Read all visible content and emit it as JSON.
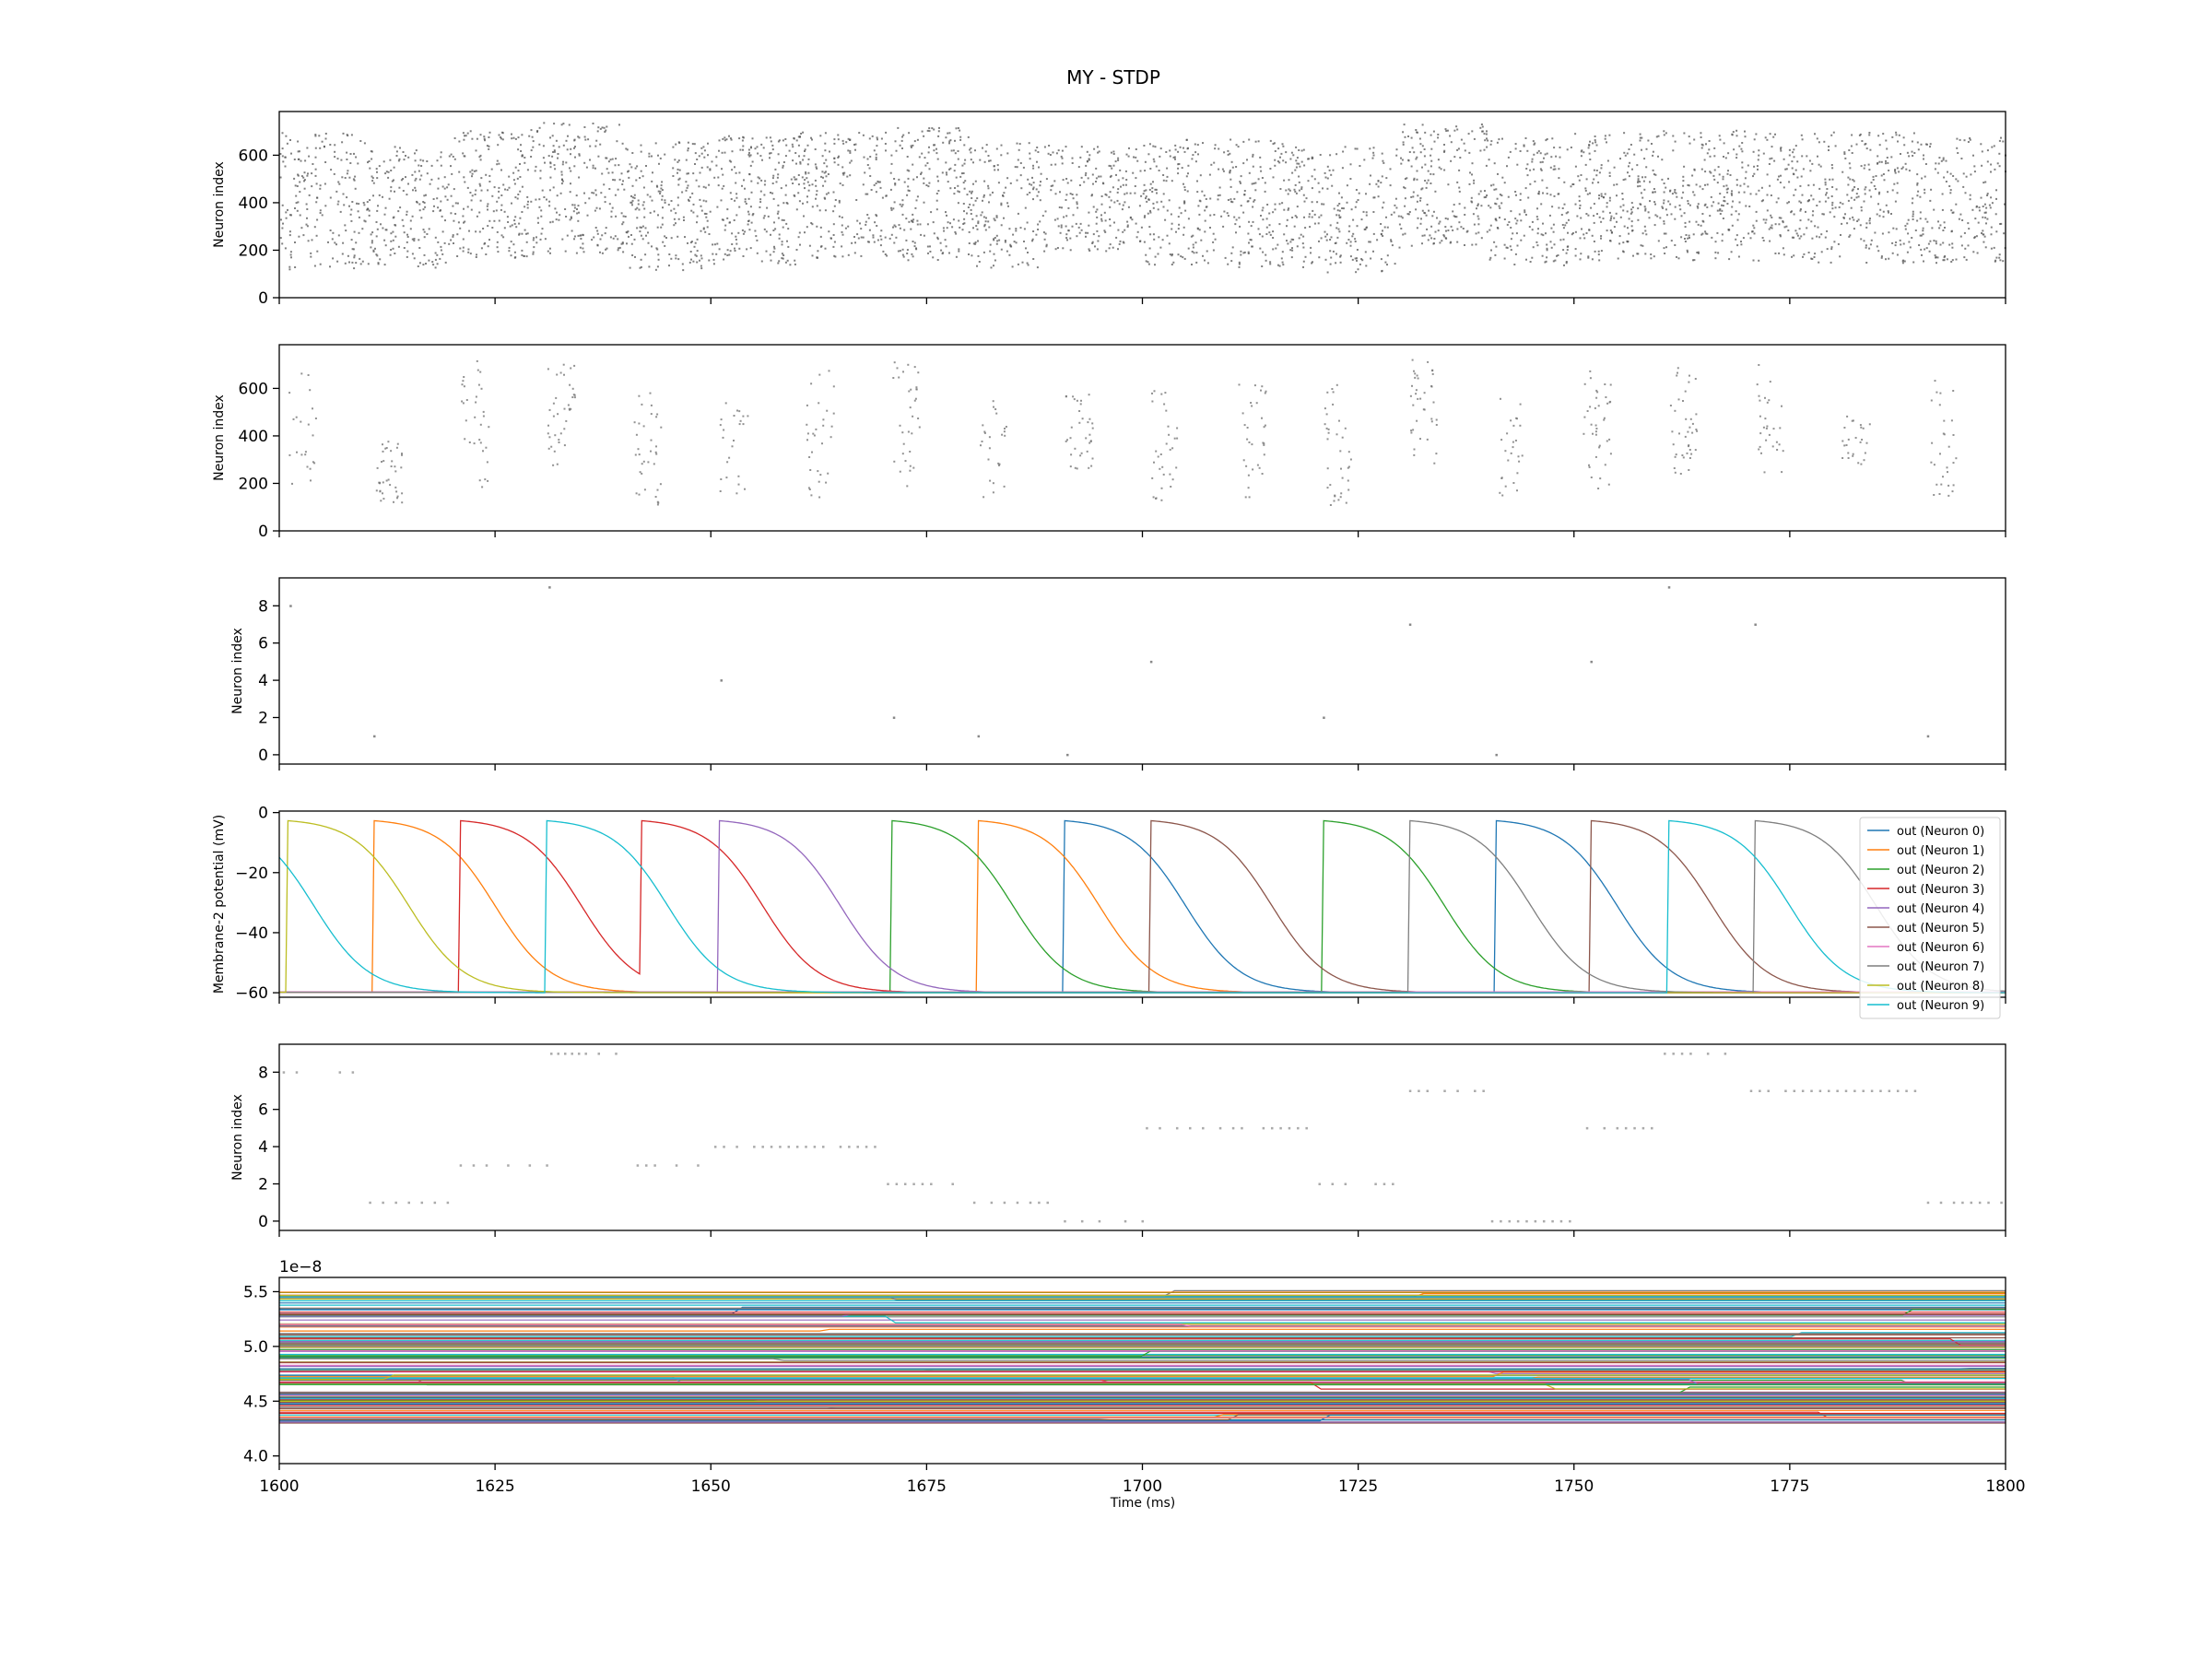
{
  "figure": {
    "title": "MY - STDP",
    "xlabel": "Time (ms)",
    "xlim": [
      1600,
      1800
    ],
    "xticks": [
      1600,
      1625,
      1650,
      1675,
      1700,
      1725,
      1750,
      1775,
      1800
    ],
    "background": "#ffffff",
    "axis_color": "#000000"
  },
  "chart_data": [
    {
      "type": "scatter",
      "title": "",
      "ylabel": "Neuron index",
      "ylim": [
        0,
        784
      ],
      "yticks": [
        0,
        200,
        400,
        600
      ],
      "marker_color": "#555555",
      "description_of_pattern": "dense input raster",
      "segments": [
        {
          "t0": 1600,
          "t1": 1610,
          "lo": 120,
          "hi": 700
        },
        {
          "t0": 1610,
          "t1": 1620,
          "lo": 130,
          "hi": 640
        },
        {
          "t0": 1620,
          "t1": 1630,
          "lo": 170,
          "hi": 720
        },
        {
          "t0": 1630,
          "t1": 1640,
          "lo": 190,
          "hi": 740
        },
        {
          "t0": 1640,
          "t1": 1650,
          "lo": 120,
          "hi": 660
        },
        {
          "t0": 1650,
          "t1": 1660,
          "lo": 140,
          "hi": 690
        },
        {
          "t0": 1660,
          "t1": 1670,
          "lo": 170,
          "hi": 700
        },
        {
          "t0": 1670,
          "t1": 1680,
          "lo": 160,
          "hi": 720
        },
        {
          "t0": 1680,
          "t1": 1690,
          "lo": 130,
          "hi": 660
        },
        {
          "t0": 1690,
          "t1": 1700,
          "lo": 200,
          "hi": 640
        },
        {
          "t0": 1700,
          "t1": 1710,
          "lo": 140,
          "hi": 670
        },
        {
          "t0": 1710,
          "t1": 1720,
          "lo": 130,
          "hi": 670
        },
        {
          "t0": 1720,
          "t1": 1730,
          "lo": 110,
          "hi": 640
        },
        {
          "t0": 1730,
          "t1": 1740,
          "lo": 220,
          "hi": 740
        },
        {
          "t0": 1740,
          "t1": 1750,
          "lo": 140,
          "hi": 680
        },
        {
          "t0": 1750,
          "t1": 1760,
          "lo": 160,
          "hi": 700
        },
        {
          "t0": 1760,
          "t1": 1770,
          "lo": 160,
          "hi": 710
        },
        {
          "t0": 1770,
          "t1": 1780,
          "lo": 150,
          "hi": 700
        },
        {
          "t0": 1780,
          "t1": 1790,
          "lo": 150,
          "hi": 700
        },
        {
          "t0": 1790,
          "t1": 1800,
          "lo": 150,
          "hi": 680
        }
      ]
    },
    {
      "type": "scatter",
      "title": "",
      "ylabel": "Neuron index",
      "ylim": [
        0,
        784
      ],
      "yticks": [
        0,
        200,
        400,
        600
      ],
      "marker_color": "#777777",
      "bursts": [
        {
          "t": 1601,
          "lo": 200,
          "hi": 710
        },
        {
          "t": 1611,
          "lo": 120,
          "hi": 380
        },
        {
          "t": 1621,
          "lo": 180,
          "hi": 720
        },
        {
          "t": 1631,
          "lo": 260,
          "hi": 740
        },
        {
          "t": 1641,
          "lo": 110,
          "hi": 600
        },
        {
          "t": 1651,
          "lo": 160,
          "hi": 560
        },
        {
          "t": 1661,
          "lo": 140,
          "hi": 690
        },
        {
          "t": 1671,
          "lo": 180,
          "hi": 720
        },
        {
          "t": 1681,
          "lo": 140,
          "hi": 580
        },
        {
          "t": 1691,
          "lo": 240,
          "hi": 600
        },
        {
          "t": 1701,
          "lo": 130,
          "hi": 600
        },
        {
          "t": 1711,
          "lo": 120,
          "hi": 670
        },
        {
          "t": 1721,
          "lo": 100,
          "hi": 630
        },
        {
          "t": 1731,
          "lo": 230,
          "hi": 750
        },
        {
          "t": 1741,
          "lo": 120,
          "hi": 560
        },
        {
          "t": 1751,
          "lo": 160,
          "hi": 690
        },
        {
          "t": 1761,
          "lo": 240,
          "hi": 710
        },
        {
          "t": 1771,
          "lo": 180,
          "hi": 710
        },
        {
          "t": 1781,
          "lo": 280,
          "hi": 490
        },
        {
          "t": 1791,
          "lo": 150,
          "hi": 690
        }
      ]
    },
    {
      "type": "scatter",
      "title": "",
      "ylabel": "Neuron index",
      "ylim": [
        -0.5,
        9.5
      ],
      "yticks": [
        0,
        2,
        4,
        6,
        8
      ],
      "marker_color": "#888888",
      "points": [
        {
          "x": 1601.3,
          "y": 8
        },
        {
          "x": 1611.0,
          "y": 1
        },
        {
          "x": 1631.3,
          "y": 9
        },
        {
          "x": 1651.2,
          "y": 4
        },
        {
          "x": 1671.2,
          "y": 2
        },
        {
          "x": 1681.0,
          "y": 1
        },
        {
          "x": 1691.3,
          "y": 0
        },
        {
          "x": 1701.0,
          "y": 5
        },
        {
          "x": 1721.0,
          "y": 2
        },
        {
          "x": 1731.0,
          "y": 7
        },
        {
          "x": 1741.0,
          "y": 0
        },
        {
          "x": 1752.0,
          "y": 5
        },
        {
          "x": 1761.0,
          "y": 9
        },
        {
          "x": 1771.0,
          "y": 7
        },
        {
          "x": 1791.0,
          "y": 1
        }
      ]
    },
    {
      "type": "line",
      "title": "",
      "ylabel": "Membrane-2 potential (mV)",
      "ylim": [
        -61.5,
        0.5
      ],
      "yticks": [
        -60,
        -40,
        -20,
        0
      ],
      "legend_position": "right",
      "v_reset": -60,
      "v_rest": -2,
      "decay_center_ms": 14,
      "decay_width_ms": 3.2,
      "series": [
        {
          "name": "out (Neuron 0)",
          "color": "#1f77b4",
          "jumps": [
            1691,
            1741
          ]
        },
        {
          "name": "out (Neuron 1)",
          "color": "#ff7f0e",
          "jumps": [
            1611,
            1681
          ]
        },
        {
          "name": "out (Neuron 2)",
          "color": "#2ca02c",
          "jumps": [
            1671,
            1721
          ]
        },
        {
          "name": "out (Neuron 3)",
          "color": "#d62728",
          "jumps": [
            1621,
            1642
          ]
        },
        {
          "name": "out (Neuron 4)",
          "color": "#9467bd",
          "jumps": [
            1651
          ]
        },
        {
          "name": "out (Neuron 5)",
          "color": "#8c564b",
          "jumps": [
            1701,
            1752
          ]
        },
        {
          "name": "out (Neuron 6)",
          "color": "#e377c2",
          "jumps": []
        },
        {
          "name": "out (Neuron 7)",
          "color": "#7f7f7f",
          "jumps": [
            1731,
            1771
          ]
        },
        {
          "name": "out (Neuron 8)",
          "color": "#bcbd22",
          "jumps": [
            1601
          ]
        },
        {
          "name": "out (Neuron 9)",
          "color": "#17becf",
          "jumps": [
            1631,
            1761
          ]
        }
      ]
    },
    {
      "type": "scatter",
      "title": "",
      "ylabel": "Neuron index",
      "ylim": [
        -0.5,
        9.5
      ],
      "yticks": [
        0,
        2,
        4,
        6,
        8
      ],
      "marker_color": "#aaaaaa",
      "runs": [
        {
          "y": 8,
          "times": [
            1600.5,
            1602,
            1607,
            1608.5
          ]
        },
        {
          "y": 1,
          "times": [
            1610.5,
            1612,
            1613.5,
            1615,
            1616.5,
            1618,
            1619.5
          ]
        },
        {
          "y": 3,
          "times": [
            1621,
            1622.5,
            1624,
            1626.5,
            1629,
            1631
          ]
        },
        {
          "y": 9,
          "times": [
            1631.5,
            1632.3,
            1633.1,
            1633.9,
            1634.7,
            1635.5,
            1637,
            1639
          ]
        },
        {
          "y": 3,
          "times": [
            1641.5,
            1642.5,
            1643.5,
            1646,
            1648.5
          ]
        },
        {
          "y": 4,
          "times": [
            1650.5,
            1651.5,
            1653,
            1655,
            1656,
            1657,
            1658,
            1659,
            1660,
            1661,
            1662,
            1663,
            1665,
            1666,
            1667,
            1668,
            1669
          ]
        },
        {
          "y": 2,
          "times": [
            1670.5,
            1671.5,
            1672.5,
            1673.5,
            1674.5,
            1675.5,
            1678
          ]
        },
        {
          "y": 1,
          "times": [
            1680.5,
            1682.5,
            1684,
            1685.5,
            1687,
            1688,
            1689
          ]
        },
        {
          "y": 0,
          "times": [
            1691,
            1693,
            1695,
            1698,
            1700
          ]
        },
        {
          "y": 5,
          "times": [
            1700.5,
            1702,
            1704,
            1705.5,
            1707,
            1709,
            1710.5,
            1711.5,
            1714,
            1715,
            1716,
            1717,
            1718,
            1719
          ]
        },
        {
          "y": 2,
          "times": [
            1720.5,
            1722,
            1723.5,
            1727,
            1728,
            1729
          ]
        },
        {
          "y": 7,
          "times": [
            1731,
            1732,
            1733,
            1735,
            1736.5,
            1738.5,
            1739.5
          ]
        },
        {
          "y": 0,
          "times": [
            1740.5,
            1741.5,
            1742.5,
            1743.5,
            1744.5,
            1745.5,
            1746.5,
            1747.5,
            1748.5,
            1749.5
          ]
        },
        {
          "y": 5,
          "times": [
            1751.5,
            1753.5,
            1755,
            1756,
            1757,
            1758,
            1759
          ]
        },
        {
          "y": 9,
          "times": [
            1760.5,
            1761.5,
            1762.5,
            1763.5,
            1765.5,
            1767.5
          ]
        },
        {
          "y": 7,
          "times": [
            1770.5,
            1771.5,
            1772.5,
            1774.5,
            1775.5,
            1776.5,
            1777.5,
            1778.5,
            1779.5,
            1780.5,
            1781.5,
            1782.5,
            1783.5,
            1784.5,
            1785.5,
            1786.5,
            1787.5,
            1788.5,
            1789.5
          ]
        },
        {
          "y": 1,
          "times": [
            1791,
            1792.5,
            1794,
            1795,
            1796,
            1797,
            1798,
            1799.5
          ]
        }
      ]
    },
    {
      "type": "line",
      "title": "",
      "ylabel": "",
      "offset_text": "1e−8",
      "scale": 1e-08,
      "ylim": [
        3.93,
        5.63
      ],
      "yticks": [
        4.0,
        4.5,
        5.0,
        5.5
      ],
      "ytick_labels": [
        "4.0",
        "4.5",
        "5.0",
        "5.5"
      ],
      "band_range": [
        4.3,
        5.5
      ],
      "band_count": 150,
      "palette": [
        "#1f77b4",
        "#ff7f0e",
        "#2ca02c",
        "#d62728",
        "#9467bd",
        "#8c564b",
        "#e377c2",
        "#7f7f7f",
        "#bcbd22",
        "#17becf"
      ]
    }
  ]
}
